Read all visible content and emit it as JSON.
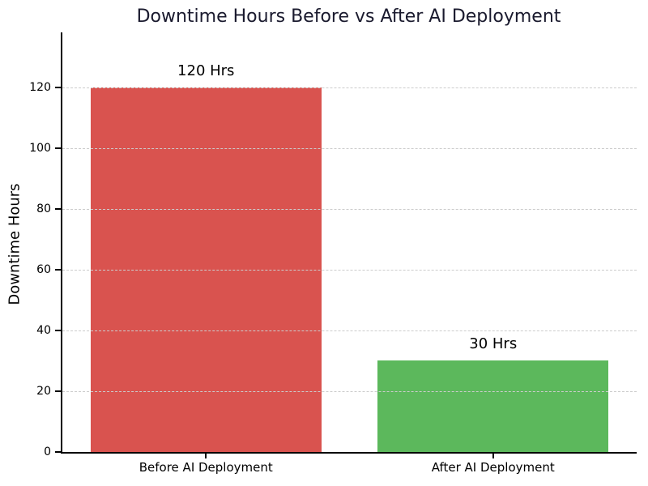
{
  "chart_data": {
    "type": "bar",
    "title": "Downtime Hours Before vs After AI Deployment",
    "categories": [
      "Before AI Deployment",
      "After AI Deployment"
    ],
    "values": [
      120,
      30
    ],
    "bar_labels": [
      "120 Hrs",
      "30 Hrs"
    ],
    "bar_colors": [
      "#d9534f",
      "#5cb85c"
    ],
    "xlabel": "",
    "ylabel": "Downtime Hours",
    "yticks": [
      0,
      20,
      40,
      60,
      80,
      100,
      120
    ],
    "ylim": [
      0,
      138
    ],
    "grid": "horizontal-dashed",
    "gridline_color": "#cccccc",
    "title_color": "#1a1a2e",
    "text_color": "#000000",
    "background_color": "#ffffff",
    "legend": "none"
  }
}
